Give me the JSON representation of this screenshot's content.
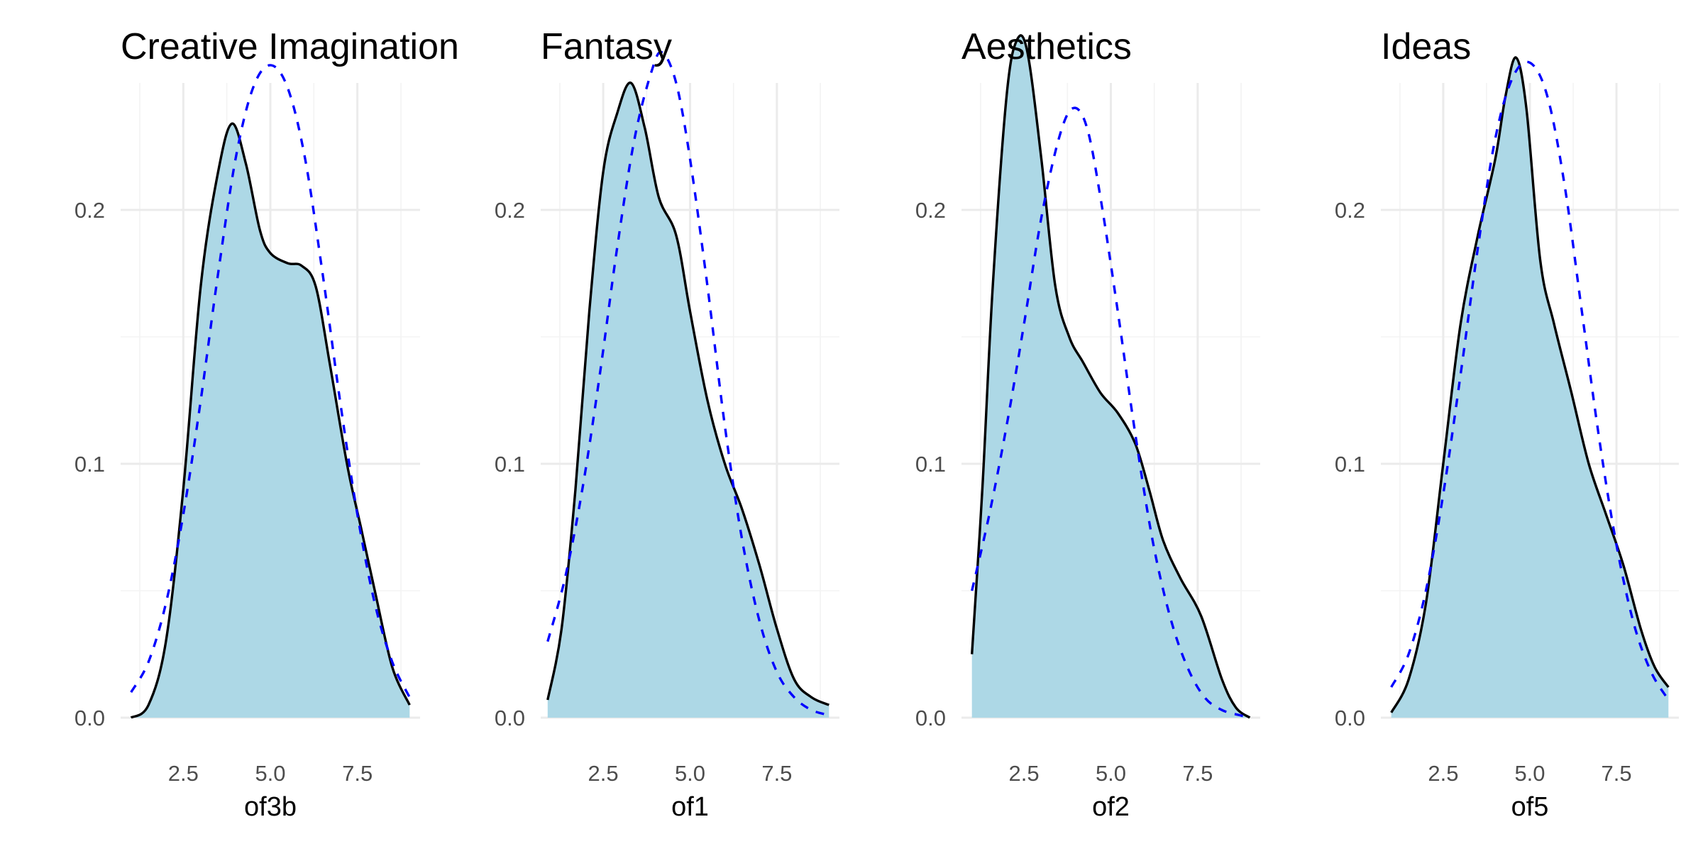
{
  "chart_data": [
    {
      "type": "area",
      "title": "Creative Imagination",
      "xlabel": "of3b",
      "ylabel": "",
      "xlim": [
        0.7,
        9.3
      ],
      "ylim": [
        0,
        0.25
      ],
      "x_ticks": [
        2.5,
        5.0,
        7.5
      ],
      "x_tick_labels": [
        "2.5",
        "5.0",
        "7.5"
      ],
      "y_ticks": [
        0.0,
        0.1,
        0.2
      ],
      "y_tick_labels": [
        "0.0",
        "0.1",
        "0.2"
      ],
      "grid": true,
      "series": [
        {
          "style": "solid black line, light blue fill",
          "x": [
            1.0,
            1.5,
            2.0,
            2.5,
            3.0,
            3.5,
            3.9,
            4.3,
            4.7,
            5.0,
            5.5,
            5.9,
            6.3,
            6.7,
            7.2,
            7.6,
            8.0,
            8.5,
            9.0
          ],
          "y": [
            0.0,
            0.005,
            0.03,
            0.09,
            0.17,
            0.215,
            0.234,
            0.218,
            0.192,
            0.183,
            0.179,
            0.178,
            0.17,
            0.14,
            0.1,
            0.075,
            0.05,
            0.02,
            0.005
          ]
        },
        {
          "style": "dashed blue line",
          "x": [
            1.0,
            1.5,
            2.0,
            2.5,
            3.0,
            3.5,
            4.0,
            4.5,
            5.0,
            5.5,
            6.0,
            6.5,
            7.0,
            7.5,
            8.0,
            8.5,
            9.0
          ],
          "y": [
            0.01,
            0.022,
            0.045,
            0.08,
            0.125,
            0.175,
            0.22,
            0.248,
            0.257,
            0.248,
            0.22,
            0.175,
            0.125,
            0.08,
            0.045,
            0.022,
            0.008
          ]
        }
      ]
    },
    {
      "type": "area",
      "title": "Fantasy",
      "xlabel": "of1",
      "ylabel": "",
      "xlim": [
        0.7,
        9.3
      ],
      "ylim": [
        0,
        0.25
      ],
      "x_ticks": [
        2.5,
        5.0,
        7.5
      ],
      "x_tick_labels": [
        "2.5",
        "5.0",
        "7.5"
      ],
      "y_ticks": [
        0.0,
        0.1,
        0.2
      ],
      "y_tick_labels": [
        "0.0",
        "0.1",
        "0.2"
      ],
      "grid": true,
      "series": [
        {
          "style": "solid black line, light blue fill",
          "x": [
            0.9,
            1.3,
            1.7,
            2.1,
            2.5,
            2.9,
            3.3,
            3.7,
            4.1,
            4.6,
            5.0,
            5.5,
            6.0,
            6.5,
            7.0,
            7.5,
            8.0,
            8.5,
            9.0
          ],
          "y": [
            0.007,
            0.035,
            0.09,
            0.16,
            0.215,
            0.238,
            0.25,
            0.232,
            0.205,
            0.19,
            0.16,
            0.125,
            0.1,
            0.082,
            0.06,
            0.035,
            0.015,
            0.008,
            0.005
          ]
        },
        {
          "style": "dashed blue line",
          "x": [
            0.9,
            1.4,
            1.9,
            2.4,
            2.9,
            3.4,
            3.9,
            4.2,
            4.6,
            5.0,
            5.5,
            6.0,
            6.5,
            7.0,
            7.5,
            8.0,
            8.5,
            9.0
          ],
          "y": [
            0.03,
            0.055,
            0.09,
            0.135,
            0.185,
            0.228,
            0.255,
            0.262,
            0.25,
            0.22,
            0.17,
            0.115,
            0.07,
            0.038,
            0.018,
            0.008,
            0.003,
            0.001
          ]
        }
      ]
    },
    {
      "type": "area",
      "title": "Aesthetics",
      "xlabel": "of2",
      "ylabel": "",
      "xlim": [
        0.7,
        9.3
      ],
      "ylim": [
        0,
        0.25
      ],
      "x_ticks": [
        2.5,
        5.0,
        7.5
      ],
      "x_tick_labels": [
        "2.5",
        "5.0",
        "7.5"
      ],
      "y_ticks": [
        0.0,
        0.1,
        0.2
      ],
      "y_tick_labels": [
        "0.0",
        "0.1",
        "0.2"
      ],
      "grid": true,
      "series": [
        {
          "style": "solid black line, light blue fill",
          "x": [
            1.0,
            1.3,
            1.6,
            2.0,
            2.3,
            2.6,
            3.0,
            3.4,
            3.8,
            4.2,
            4.7,
            5.2,
            5.7,
            6.1,
            6.5,
            7.0,
            7.6,
            8.2,
            8.6,
            9.0
          ],
          "y": [
            0.025,
            0.09,
            0.17,
            0.245,
            0.267,
            0.262,
            0.22,
            0.17,
            0.15,
            0.14,
            0.128,
            0.12,
            0.108,
            0.09,
            0.07,
            0.055,
            0.04,
            0.015,
            0.004,
            0.0
          ]
        },
        {
          "style": "dashed blue line",
          "x": [
            1.0,
            1.5,
            2.0,
            2.5,
            3.0,
            3.5,
            3.9,
            4.3,
            4.7,
            5.2,
            5.7,
            6.2,
            6.7,
            7.2,
            7.7,
            8.2,
            8.7,
            9.0
          ],
          "y": [
            0.05,
            0.08,
            0.115,
            0.155,
            0.197,
            0.228,
            0.24,
            0.233,
            0.205,
            0.16,
            0.112,
            0.07,
            0.04,
            0.02,
            0.008,
            0.003,
            0.001,
            0.0
          ]
        }
      ]
    },
    {
      "type": "area",
      "title": "Ideas",
      "xlabel": "of5",
      "ylabel": "",
      "xlim": [
        0.7,
        9.3
      ],
      "ylim": [
        0,
        0.25
      ],
      "x_ticks": [
        2.5,
        5.0,
        7.5
      ],
      "x_tick_labels": [
        "2.5",
        "5.0",
        "7.5"
      ],
      "y_ticks": [
        0.0,
        0.1,
        0.2
      ],
      "y_tick_labels": [
        "0.0",
        "0.1",
        "0.2"
      ],
      "grid": true,
      "series": [
        {
          "style": "solid black line, light blue fill",
          "x": [
            1.0,
            1.5,
            2.0,
            2.5,
            3.0,
            3.5,
            4.0,
            4.3,
            4.6,
            4.9,
            5.3,
            5.7,
            6.2,
            6.7,
            7.2,
            7.7,
            8.2,
            8.6,
            9.0
          ],
          "y": [
            0.002,
            0.015,
            0.045,
            0.1,
            0.155,
            0.19,
            0.22,
            0.245,
            0.26,
            0.24,
            0.18,
            0.155,
            0.128,
            0.1,
            0.08,
            0.06,
            0.035,
            0.02,
            0.012
          ]
        },
        {
          "style": "dashed blue line",
          "x": [
            1.0,
            1.5,
            2.0,
            2.5,
            3.0,
            3.5,
            4.0,
            4.5,
            5.0,
            5.5,
            6.0,
            6.5,
            7.0,
            7.5,
            8.0,
            8.5,
            9.0
          ],
          "y": [
            0.012,
            0.025,
            0.05,
            0.088,
            0.135,
            0.185,
            0.228,
            0.252,
            0.258,
            0.245,
            0.21,
            0.16,
            0.11,
            0.068,
            0.037,
            0.018,
            0.007
          ]
        }
      ]
    }
  ]
}
